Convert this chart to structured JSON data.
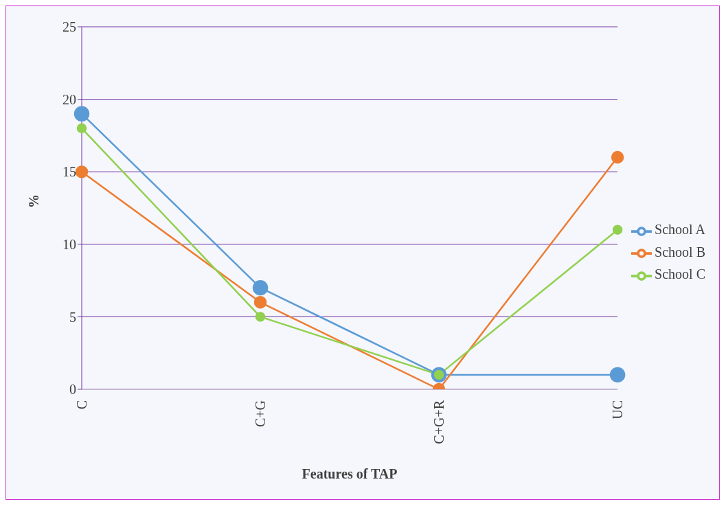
{
  "chart_data": {
    "type": "line",
    "xlabel": "Features of TAP",
    "ylabel": "%",
    "categories": [
      "C",
      "C+G",
      "C+G+R",
      "UC"
    ],
    "series": [
      {
        "name": "School A",
        "color": "#5b9bd5",
        "values": [
          19,
          7,
          1,
          1
        ]
      },
      {
        "name": "School B",
        "color": "#ed7d31",
        "values": [
          15,
          6,
          0,
          16
        ]
      },
      {
        "name": "School C",
        "color": "#92d050",
        "values": [
          18,
          5,
          1,
          11
        ]
      }
    ],
    "ylim": [
      0,
      25
    ],
    "yticks": [
      0,
      5,
      10,
      15,
      20,
      25
    ],
    "grid": "y",
    "legend": "right",
    "marker": "circle",
    "line_style": "solid"
  }
}
